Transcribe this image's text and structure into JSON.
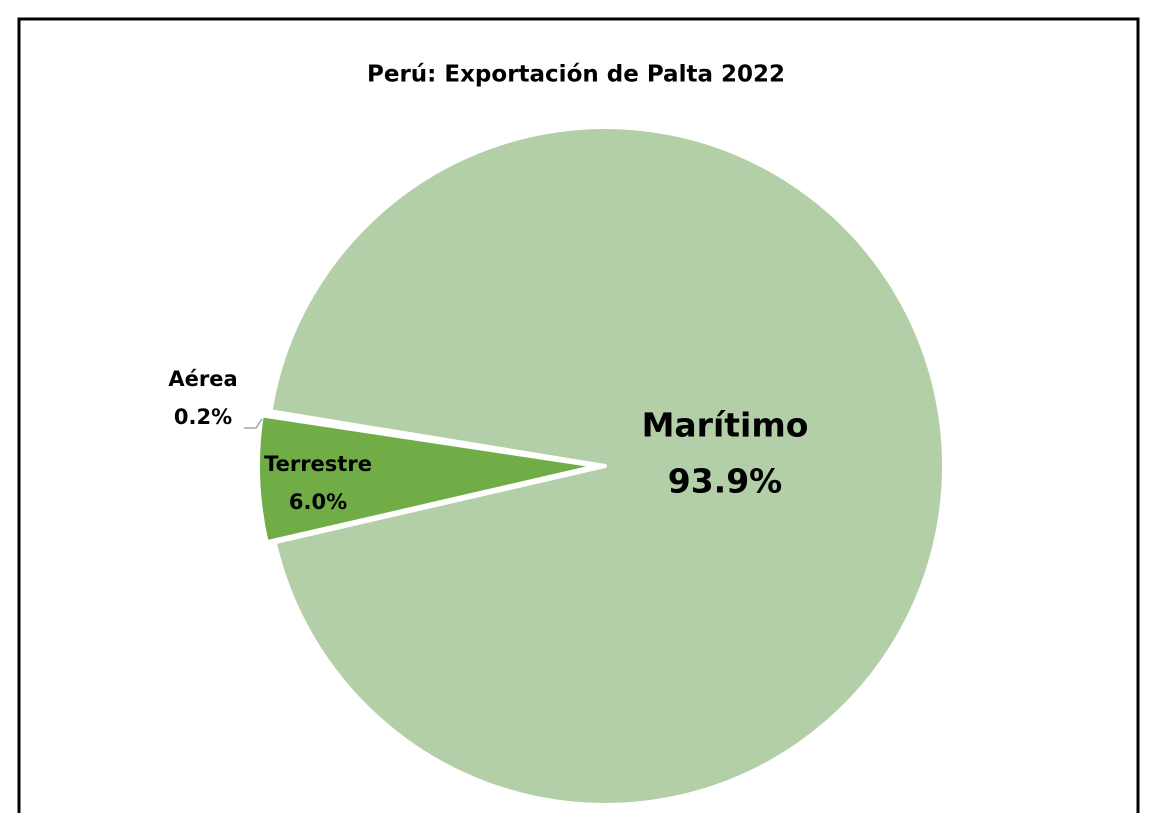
{
  "chart_data": {
    "type": "pie",
    "title": "Perú: Exportación de Palta 2022",
    "categories": [
      "Terrestre",
      "Aérea",
      "Marítimo"
    ],
    "values": [
      6.0,
      0.2,
      93.9
    ],
    "value_labels": [
      "6.0%",
      "0.2%",
      "93.9%"
    ],
    "colors": [
      "#70ad47",
      "#a9c99a",
      "#b3cfa8"
    ]
  }
}
